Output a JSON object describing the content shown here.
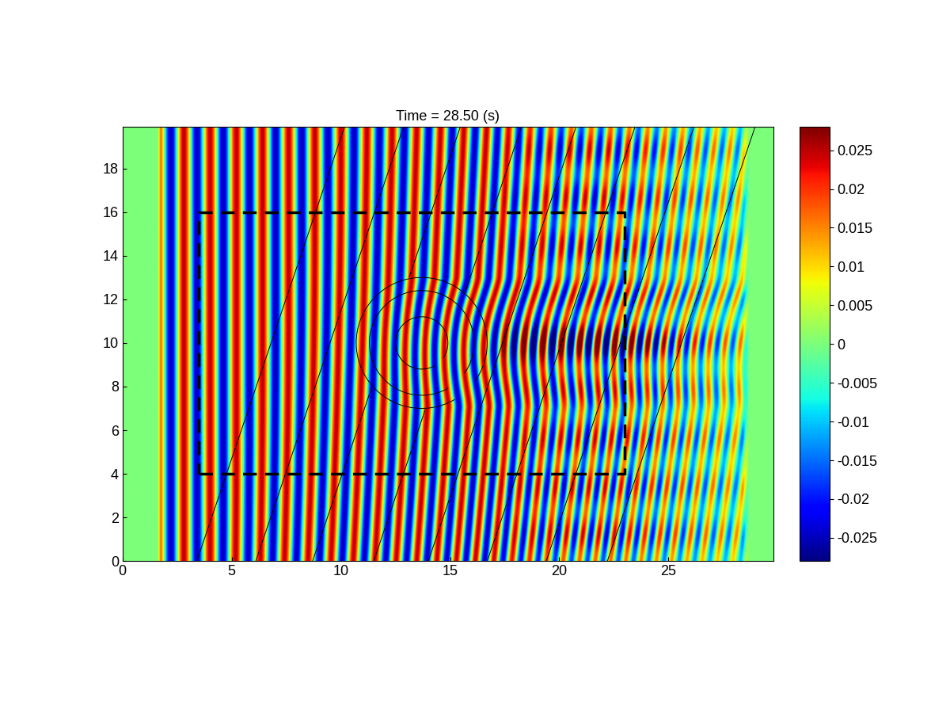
{
  "chart_data": {
    "type": "heatmap",
    "title": "Time = 28.50 (s)",
    "xlim": [
      0,
      29.8
    ],
    "ylim": [
      0,
      19.9
    ],
    "xticks": [
      0,
      5,
      10,
      15,
      20,
      25
    ],
    "yticks": [
      0,
      2,
      4,
      6,
      8,
      10,
      12,
      14,
      16,
      18
    ],
    "colorbar": {
      "range": [
        -0.028,
        0.028
      ],
      "ticks": [
        -0.025,
        -0.02,
        -0.015,
        -0.01,
        -0.005,
        0,
        0.005,
        0.01,
        0.015,
        0.02,
        0.025
      ]
    },
    "field": {
      "amplitude": 0.025,
      "x_start": 1.6,
      "x_front": 28.7,
      "wavelength": [
        1.2,
        0.7
      ]
    },
    "region": {
      "x": [
        3.5,
        23
      ],
      "y": [
        4,
        16
      ]
    },
    "shoal": {
      "center": [
        13.7,
        10
      ],
      "radii": [
        1.2,
        2.4,
        3.0
      ]
    },
    "depth_contours": {
      "x_at_bottom": [
        3.4,
        6.1,
        8.7,
        11.5,
        14.0,
        16.7,
        19.4,
        22.2
      ],
      "slope": 0.34
    }
  }
}
